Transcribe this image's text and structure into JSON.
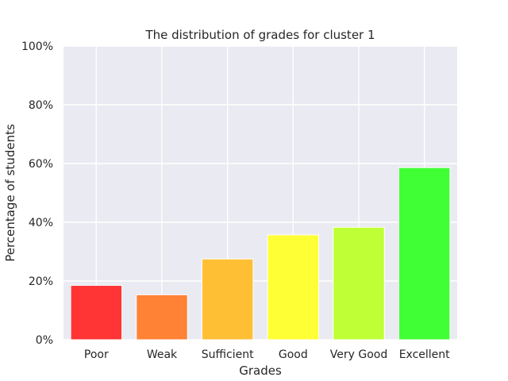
{
  "chart_data": {
    "type": "bar",
    "title": "The distribution of grades for cluster 1",
    "xlabel": "Grades",
    "ylabel": "Percentage of students",
    "categories": [
      "Poor",
      "Weak",
      "Sufficient",
      "Good",
      "Very Good",
      "Excellent"
    ],
    "values": [
      18.5,
      15.3,
      27.5,
      35.7,
      38.3,
      58.6
    ],
    "colors": [
      "#ff3535",
      "#ff8235",
      "#ffbf35",
      "#ffff35",
      "#bfff35",
      "#41ff35"
    ],
    "ylim": [
      0,
      100
    ],
    "yticks": [
      0,
      20,
      40,
      60,
      80,
      100
    ],
    "ytick_labels": [
      "0%",
      "20%",
      "40%",
      "60%",
      "80%",
      "100%"
    ],
    "grid": true,
    "background": "#eaeaf2"
  }
}
